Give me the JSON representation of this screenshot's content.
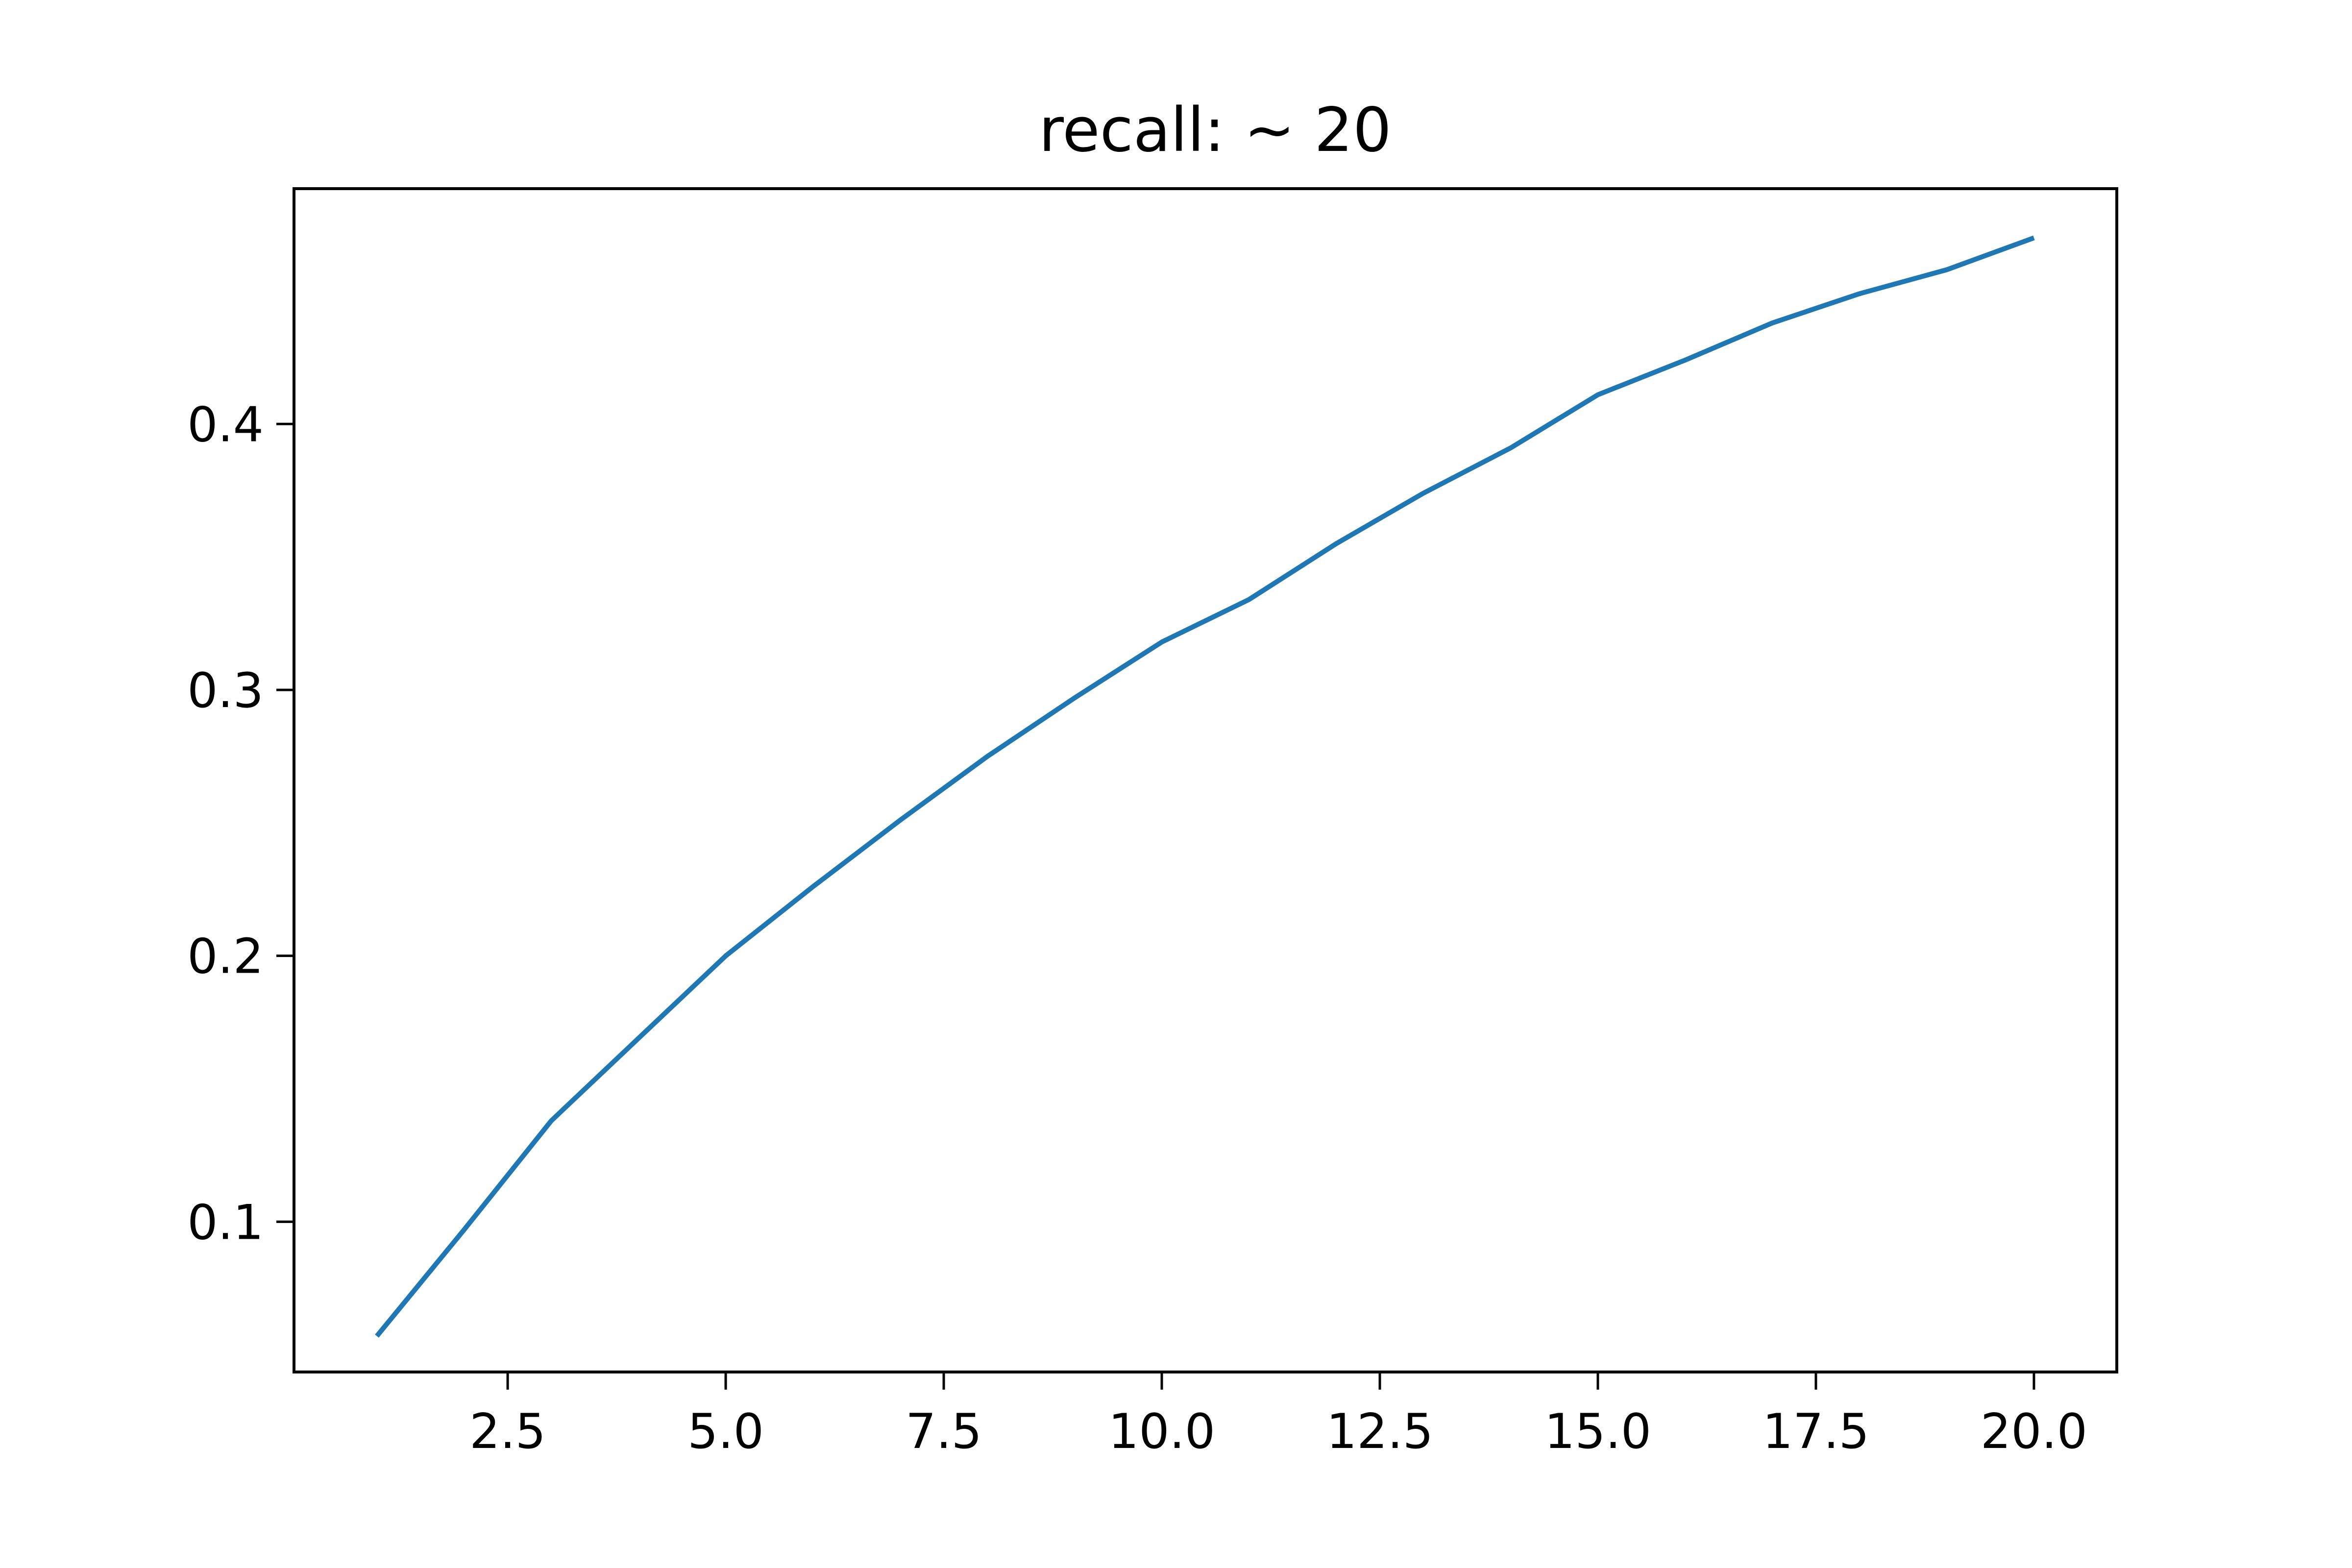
{
  "chart_data": {
    "type": "line",
    "title": "recall: ~ 20",
    "xlabel": "",
    "ylabel": "",
    "xlim": [
      0.05,
      20.95
    ],
    "ylim": [
      0.0435,
      0.4885
    ],
    "grid": false,
    "legend": "none",
    "x_ticks": [
      2.5,
      5.0,
      7.5,
      10.0,
      12.5,
      15.0,
      17.5,
      20.0
    ],
    "x_tick_labels": [
      "2.5",
      "5.0",
      "7.5",
      "10.0",
      "12.5",
      "15.0",
      "17.5",
      "20.0"
    ],
    "y_ticks": [
      0.1,
      0.2,
      0.3,
      0.4
    ],
    "y_tick_labels": [
      "0.1",
      "0.2",
      "0.3",
      "0.4"
    ],
    "series": [
      {
        "color": "#1f77b4",
        "x": [
          1,
          2,
          3,
          4,
          5,
          6,
          7,
          8,
          9,
          10,
          11,
          12,
          13,
          14,
          15,
          16,
          17,
          18,
          19,
          20
        ],
        "y": [
          0.057,
          0.097,
          0.138,
          0.169,
          0.2,
          0.226,
          0.251,
          0.275,
          0.297,
          0.318,
          0.334,
          0.355,
          0.374,
          0.391,
          0.411,
          0.424,
          0.438,
          0.449,
          0.458,
          0.47
        ]
      }
    ]
  }
}
